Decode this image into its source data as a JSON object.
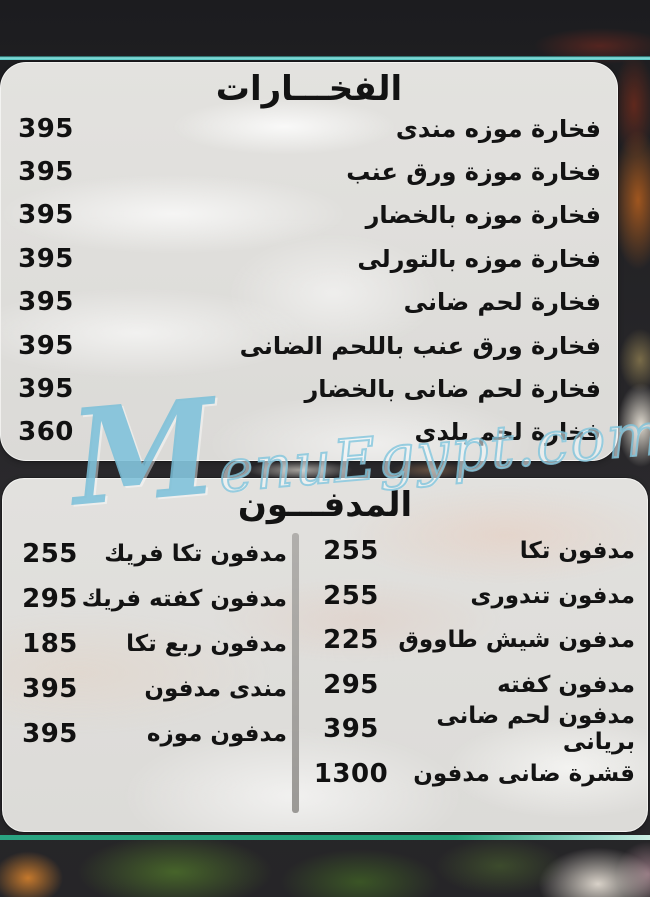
{
  "watermark": {
    "initial": "M",
    "rest": "enuEgypt.com"
  },
  "colors": {
    "accent_teal_top": "#7fdcd9",
    "accent_green_bottom": "#2aa482",
    "panel_bg": "#e0dfdd",
    "text": "#141414",
    "watermark_blue": "#8ccde2",
    "divider_gray": "#a3a19e"
  },
  "sections": [
    {
      "title": "الفخـــارات",
      "items": [
        {
          "name": "فخارة موزه مندى",
          "price": "395"
        },
        {
          "name": "فخارة موزة ورق عنب",
          "price": "395"
        },
        {
          "name": "فخارة موزه بالخضار",
          "price": "395"
        },
        {
          "name": "فخارة موزه بالتورلى",
          "price": "395"
        },
        {
          "name": "فخارة لحم ضانى",
          "price": "395"
        },
        {
          "name": "فخارة ورق عنب باللحم الضانى",
          "price": "395"
        },
        {
          "name": "فخارة لحم ضانى بالخضار",
          "price": "395"
        },
        {
          "name": "فخارة لحم بلدى",
          "price": "360"
        }
      ]
    },
    {
      "title": "المدفـــون",
      "right_column": [
        {
          "name": "مدفون تكا",
          "price": "255"
        },
        {
          "name": "مدفون تندورى",
          "price": "255"
        },
        {
          "name": "مدفون شيش طاووق",
          "price": "225"
        },
        {
          "name": "مدفون كفته",
          "price": "295"
        },
        {
          "name": "مدفون لحم ضانى بريانى",
          "price": "395"
        },
        {
          "name": "قشرة ضانى مدفون",
          "price": "1300"
        }
      ],
      "left_column": [
        {
          "name": "مدفون تكا فريك",
          "price": "255"
        },
        {
          "name": "مدفون كفته فريك",
          "price": "295"
        },
        {
          "name": "مدفون ربع تكا",
          "price": "185"
        },
        {
          "name": "مندى مدفون",
          "price": "395"
        },
        {
          "name": "مدفون موزه",
          "price": "395"
        }
      ]
    }
  ]
}
